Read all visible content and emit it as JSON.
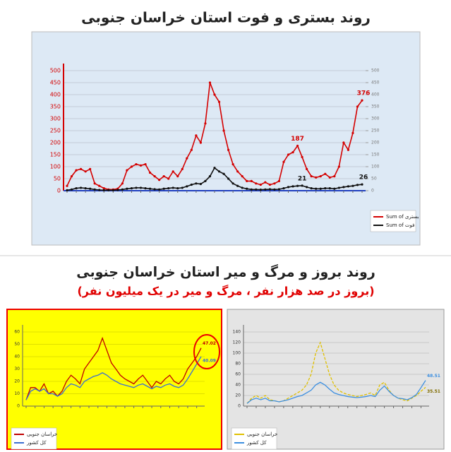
{
  "chart_data": [
    {
      "type": "line",
      "title": "روند بستری و فوت استان خراسان جنوبی",
      "ylim": [
        0,
        500
      ],
      "yticks": [
        0,
        50,
        100,
        150,
        200,
        250,
        300,
        350,
        400,
        450,
        500
      ],
      "y2lim": [
        0,
        500
      ],
      "y2ticks": [
        0,
        50,
        100,
        150,
        200,
        250,
        300,
        350,
        400,
        450,
        500
      ],
      "legend": "bottom-right",
      "background": "#dde9f5",
      "series": [
        {
          "name": "Sum of بستری",
          "color": "#d40000",
          "values": [
            20,
            60,
            85,
            90,
            80,
            90,
            30,
            20,
            10,
            5,
            5,
            8,
            30,
            85,
            100,
            110,
            105,
            110,
            75,
            60,
            45,
            60,
            50,
            80,
            60,
            90,
            135,
            170,
            230,
            200,
            280,
            450,
            400,
            370,
            250,
            170,
            110,
            80,
            60,
            40,
            40,
            30,
            25,
            35,
            25,
            30,
            40,
            120,
            150,
            160,
            187,
            140,
            90,
            60,
            55,
            60,
            70,
            55,
            60,
            100,
            200,
            170,
            240,
            350,
            376
          ],
          "value_labels": [
            null,
            null,
            null,
            null,
            null,
            null,
            null,
            null,
            null,
            null,
            null,
            null,
            null,
            null,
            null,
            null,
            null,
            null,
            null,
            null,
            null,
            null,
            null,
            null,
            null,
            null,
            null,
            null,
            null,
            null,
            null,
            null,
            null,
            null,
            null,
            null,
            null,
            null,
            null,
            null,
            null,
            null,
            null,
            null,
            null,
            null,
            null,
            null,
            null,
            null,
            "187",
            null,
            null,
            null,
            null,
            null,
            null,
            null,
            null,
            null,
            null,
            null,
            null,
            null,
            "376"
          ]
        },
        {
          "name": "Sum of فوت",
          "color": "#111111",
          "values": [
            2,
            5,
            10,
            12,
            10,
            8,
            5,
            3,
            2,
            2,
            2,
            3,
            5,
            8,
            10,
            12,
            12,
            10,
            8,
            6,
            5,
            8,
            10,
            12,
            10,
            12,
            18,
            25,
            30,
            28,
            40,
            60,
            95,
            80,
            70,
            50,
            30,
            20,
            12,
            8,
            5,
            5,
            4,
            5,
            6,
            5,
            6,
            10,
            15,
            18,
            20,
            21,
            15,
            10,
            8,
            8,
            10,
            10,
            8,
            12,
            15,
            18,
            20,
            24,
            26
          ],
          "value_labels": [
            null,
            null,
            null,
            null,
            null,
            null,
            null,
            null,
            null,
            null,
            null,
            null,
            null,
            null,
            null,
            null,
            null,
            null,
            null,
            null,
            null,
            null,
            null,
            null,
            null,
            null,
            null,
            null,
            null,
            null,
            null,
            null,
            null,
            null,
            null,
            null,
            null,
            null,
            null,
            null,
            null,
            null,
            null,
            null,
            null,
            null,
            null,
            null,
            null,
            null,
            null,
            "21",
            null,
            null,
            null,
            null,
            null,
            null,
            null,
            null,
            null,
            null,
            null,
            null,
            "26"
          ]
        }
      ]
    },
    {
      "type": "line",
      "title": "روند بروز و مرگ و میر استان خراسان جنوبی",
      "subtitle": "(بروز در صد هزار نفر ، مرگ و میر در یک میلیون نفر)",
      "ylim": [
        0,
        60
      ],
      "yticks": [
        0,
        10,
        20,
        30,
        40,
        50,
        60
      ],
      "legend": "bottom-left",
      "background": "#ffff00",
      "series": [
        {
          "name": "خراسان جنوبی",
          "color": "#c00000",
          "values": [
            5,
            15,
            15,
            12,
            18,
            10,
            12,
            8,
            12,
            20,
            25,
            22,
            18,
            30,
            35,
            40,
            45,
            55,
            45,
            35,
            30,
            25,
            22,
            20,
            18,
            22,
            25,
            20,
            15,
            20,
            18,
            22,
            25,
            20,
            18,
            22,
            30,
            35,
            40,
            47.02
          ],
          "value_labels": [
            null,
            null,
            null,
            null,
            null,
            null,
            null,
            null,
            null,
            null,
            null,
            null,
            null,
            null,
            null,
            null,
            null,
            null,
            null,
            null,
            null,
            null,
            null,
            null,
            null,
            null,
            null,
            null,
            null,
            null,
            null,
            null,
            null,
            null,
            null,
            null,
            null,
            null,
            null,
            "47.02"
          ]
        },
        {
          "name": "کل کشور",
          "color": "#3b6fd1",
          "values": [
            5,
            12,
            14,
            12,
            14,
            10,
            10,
            8,
            10,
            15,
            18,
            17,
            15,
            20,
            22,
            24,
            25,
            27,
            25,
            22,
            20,
            18,
            17,
            16,
            15,
            17,
            18,
            16,
            14,
            16,
            15,
            17,
            18,
            16,
            15,
            17,
            22,
            28,
            34,
            40.09
          ],
          "value_labels": [
            null,
            null,
            null,
            null,
            null,
            null,
            null,
            null,
            null,
            null,
            null,
            null,
            null,
            null,
            null,
            null,
            null,
            null,
            null,
            null,
            null,
            null,
            null,
            null,
            null,
            null,
            null,
            null,
            null,
            null,
            null,
            null,
            null,
            null,
            null,
            null,
            null,
            null,
            null,
            "40.09"
          ]
        }
      ]
    },
    {
      "type": "line",
      "ylim": [
        0,
        140
      ],
      "yticks": [
        0,
        20,
        40,
        60,
        80,
        100,
        120,
        140
      ],
      "legend": "bottom-left",
      "background": "#e4e4e4",
      "series": [
        {
          "name": "خراسان جنوبی",
          "color": "#e0c000",
          "dashed": true,
          "values": [
            5,
            15,
            20,
            15,
            20,
            12,
            10,
            8,
            10,
            15,
            20,
            25,
            30,
            40,
            60,
            100,
            120,
            90,
            60,
            40,
            30,
            25,
            22,
            20,
            18,
            20,
            22,
            25,
            20,
            40,
            45,
            30,
            20,
            15,
            12,
            10,
            15,
            20,
            28,
            35.51
          ],
          "value_labels": [
            null,
            null,
            null,
            null,
            null,
            null,
            null,
            null,
            null,
            null,
            null,
            null,
            null,
            null,
            null,
            null,
            null,
            null,
            null,
            null,
            null,
            null,
            null,
            null,
            null,
            null,
            null,
            null,
            null,
            null,
            null,
            null,
            null,
            null,
            null,
            null,
            null,
            null,
            null,
            "35.51"
          ]
        },
        {
          "name": "کل کشور",
          "color": "#3d8fe0",
          "values": [
            5,
            12,
            15,
            12,
            15,
            10,
            10,
            8,
            10,
            12,
            15,
            18,
            20,
            25,
            30,
            40,
            45,
            40,
            32,
            25,
            22,
            20,
            18,
            17,
            16,
            17,
            18,
            20,
            18,
            30,
            38,
            28,
            20,
            15,
            14,
            12,
            16,
            22,
            35,
            48.51
          ],
          "value_labels": [
            null,
            null,
            null,
            null,
            null,
            null,
            null,
            null,
            null,
            null,
            null,
            null,
            null,
            null,
            null,
            null,
            null,
            null,
            null,
            null,
            null,
            null,
            null,
            null,
            null,
            null,
            null,
            null,
            null,
            null,
            null,
            null,
            null,
            null,
            null,
            null,
            null,
            null,
            null,
            "48.51"
          ]
        }
      ]
    }
  ]
}
